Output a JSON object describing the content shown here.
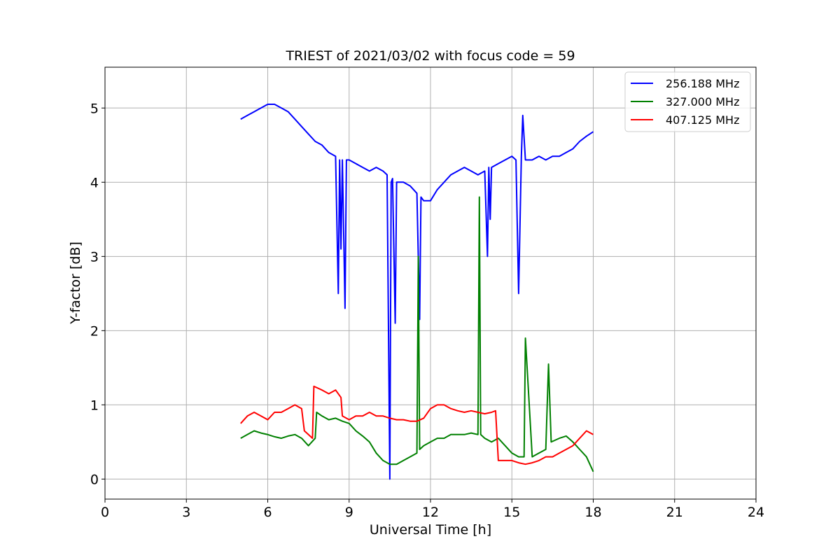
{
  "chart_data": {
    "type": "line",
    "title": "TRIEST of 2021/03/02 with focus code = 59",
    "xlabel": "Universal Time [h]",
    "ylabel": "Y-factor [dB]",
    "xlim": [
      0,
      24
    ],
    "ylim": [
      -0.27,
      5.55
    ],
    "x_ticks": [
      0,
      3,
      6,
      9,
      12,
      15,
      18,
      21,
      24
    ],
    "x_tick_labels": [
      "0",
      "3",
      "6",
      "9",
      "12",
      "15",
      "18",
      "21",
      "24"
    ],
    "y_ticks": [
      0,
      1,
      2,
      3,
      4,
      5
    ],
    "y_tick_labels": [
      "0",
      "1",
      "2",
      "3",
      "4",
      "5"
    ],
    "grid": true,
    "legend_position": "top-right",
    "series": [
      {
        "name": "256.188 MHz",
        "color": "#0000ff",
        "x": [
          5.0,
          5.25,
          5.5,
          5.75,
          6.0,
          6.25,
          6.5,
          6.75,
          7.0,
          7.25,
          7.5,
          7.75,
          8.0,
          8.25,
          8.5,
          8.6,
          8.65,
          8.7,
          8.75,
          8.85,
          8.9,
          9.0,
          9.25,
          9.5,
          9.75,
          10.0,
          10.25,
          10.4,
          10.5,
          10.55,
          10.6,
          10.7,
          10.75,
          11.0,
          11.25,
          11.5,
          11.6,
          11.65,
          11.75,
          12.0,
          12.25,
          12.5,
          12.75,
          13.0,
          13.25,
          13.5,
          13.75,
          14.0,
          14.1,
          14.15,
          14.2,
          14.25,
          14.5,
          14.75,
          15.0,
          15.15,
          15.25,
          15.35,
          15.4,
          15.5,
          15.75,
          16.0,
          16.25,
          16.5,
          16.75,
          17.0,
          17.25,
          17.5,
          17.75,
          18.0
        ],
        "y": [
          4.85,
          4.9,
          4.95,
          5.0,
          5.05,
          5.05,
          5.0,
          4.95,
          4.85,
          4.75,
          4.65,
          4.55,
          4.5,
          4.4,
          4.35,
          2.5,
          4.3,
          3.1,
          4.3,
          2.3,
          4.3,
          4.3,
          4.25,
          4.2,
          4.15,
          4.2,
          4.15,
          4.1,
          0.0,
          4.0,
          4.05,
          2.1,
          4.0,
          4.0,
          3.95,
          3.85,
          2.15,
          3.8,
          3.75,
          3.75,
          3.9,
          4.0,
          4.1,
          4.15,
          4.2,
          4.15,
          4.1,
          4.15,
          3.0,
          4.2,
          3.5,
          4.2,
          4.25,
          4.3,
          4.35,
          4.3,
          2.5,
          4.35,
          4.9,
          4.3,
          4.3,
          4.35,
          4.3,
          4.35,
          4.35,
          4.4,
          4.45,
          4.55,
          4.62,
          4.68
        ]
      },
      {
        "name": "327.000 MHz",
        "color": "#008000",
        "x": [
          5.0,
          5.25,
          5.5,
          5.75,
          6.0,
          6.25,
          6.5,
          6.75,
          7.0,
          7.25,
          7.5,
          7.75,
          7.8,
          8.0,
          8.25,
          8.5,
          8.75,
          9.0,
          9.25,
          9.5,
          9.75,
          10.0,
          10.25,
          10.5,
          10.75,
          11.0,
          11.25,
          11.5,
          11.55,
          11.6,
          11.75,
          12.0,
          12.25,
          12.5,
          12.75,
          13.0,
          13.25,
          13.5,
          13.75,
          13.8,
          13.85,
          14.0,
          14.25,
          14.5,
          14.75,
          15.0,
          15.25,
          15.45,
          15.5,
          15.75,
          16.0,
          16.25,
          16.35,
          16.45,
          16.75,
          17.0,
          17.25,
          17.5,
          17.75,
          18.0
        ],
        "y": [
          0.55,
          0.6,
          0.65,
          0.62,
          0.6,
          0.57,
          0.55,
          0.58,
          0.6,
          0.55,
          0.45,
          0.55,
          0.9,
          0.85,
          0.8,
          0.82,
          0.78,
          0.75,
          0.65,
          0.58,
          0.5,
          0.35,
          0.25,
          0.2,
          0.2,
          0.25,
          0.3,
          0.35,
          3.0,
          0.4,
          0.45,
          0.5,
          0.55,
          0.55,
          0.6,
          0.6,
          0.6,
          0.62,
          0.6,
          3.8,
          0.6,
          0.55,
          0.5,
          0.55,
          0.45,
          0.35,
          0.3,
          0.3,
          1.9,
          0.3,
          0.35,
          0.4,
          1.55,
          0.5,
          0.55,
          0.58,
          0.5,
          0.4,
          0.3,
          0.1
        ]
      },
      {
        "name": "407.125 MHz",
        "color": "#ff0000",
        "x": [
          5.0,
          5.25,
          5.5,
          5.75,
          6.0,
          6.25,
          6.5,
          6.75,
          7.0,
          7.25,
          7.35,
          7.5,
          7.65,
          7.7,
          8.0,
          8.25,
          8.5,
          8.7,
          8.75,
          9.0,
          9.25,
          9.5,
          9.75,
          10.0,
          10.25,
          10.5,
          10.75,
          11.0,
          11.25,
          11.5,
          11.75,
          12.0,
          12.25,
          12.5,
          12.75,
          13.0,
          13.25,
          13.5,
          13.75,
          14.0,
          14.25,
          14.4,
          14.5,
          14.75,
          15.0,
          15.25,
          15.5,
          15.75,
          16.0,
          16.25,
          16.5,
          16.75,
          17.0,
          17.25,
          17.5,
          17.75,
          18.0
        ],
        "y": [
          0.75,
          0.85,
          0.9,
          0.85,
          0.8,
          0.9,
          0.9,
          0.95,
          1.0,
          0.95,
          0.65,
          0.6,
          0.55,
          1.25,
          1.2,
          1.15,
          1.2,
          1.1,
          0.85,
          0.8,
          0.85,
          0.85,
          0.9,
          0.85,
          0.85,
          0.82,
          0.8,
          0.8,
          0.78,
          0.78,
          0.82,
          0.95,
          1.0,
          1.0,
          0.95,
          0.92,
          0.9,
          0.92,
          0.9,
          0.88,
          0.9,
          0.92,
          0.25,
          0.25,
          0.25,
          0.22,
          0.2,
          0.22,
          0.25,
          0.3,
          0.3,
          0.35,
          0.4,
          0.45,
          0.55,
          0.65,
          0.6
        ]
      }
    ]
  }
}
